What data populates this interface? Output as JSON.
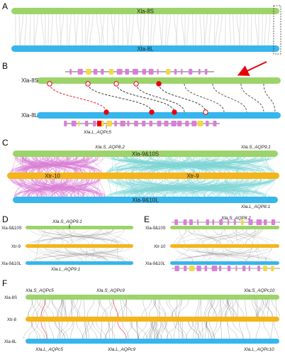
{
  "colors": {
    "green": "#9dd36b",
    "blue": "#36b6ec",
    "orange": "#f4b41a",
    "magenta": "#d97fd6",
    "cyan": "#7fd6d6",
    "gray": "#c8c8c8",
    "red": "#e8000b",
    "yellow": "#f2d84a"
  },
  "panels": {
    "A": {
      "label": "A",
      "top_chr": "Xla-8S",
      "bottom_chr": "Xla-8L"
    },
    "B": {
      "label": "B",
      "top_chr": "Xla-8S",
      "bottom_chr": "Xla-8L",
      "gene_label": "Xla.L_AQPc5"
    },
    "C": {
      "label": "C",
      "top_chr": "Xla-9&10S",
      "mid_left_chr": "Xtr-10",
      "mid_right_chr": "Xtr-9",
      "bottom_chr": "Xla-9&10L",
      "gene_labels": [
        "Xla.S_AQP8.2",
        "Xla.S_AQP9.1",
        "Xla.L_AQP8.1"
      ]
    },
    "D": {
      "label": "D",
      "chrs": [
        "Xla-9&10S",
        "Xtr-9",
        "Xla-9&10L"
      ],
      "gene_top": "Xla.S_AQP9.1",
      "gene_bottom": "Xla.L_AQP9.1"
    },
    "E": {
      "label": "E",
      "chrs": [
        "Xla-9&10S",
        "Xtr-10",
        "Xla-9&10L"
      ],
      "gene_top": "Xla.S_AQP8.2"
    },
    "F": {
      "label": "F",
      "chrs": [
        "Xla-8S",
        "Xtr-8",
        "Xla-8L"
      ],
      "gene_top": [
        "Xla.S_AQPc5",
        "Xla.S_AQPc9",
        "Xla.S_AQPc10"
      ],
      "gene_bottom": [
        "Xla.L_AQPc5",
        "Xla.L_AQPc9",
        "Xla.L_AQPc10"
      ]
    }
  }
}
